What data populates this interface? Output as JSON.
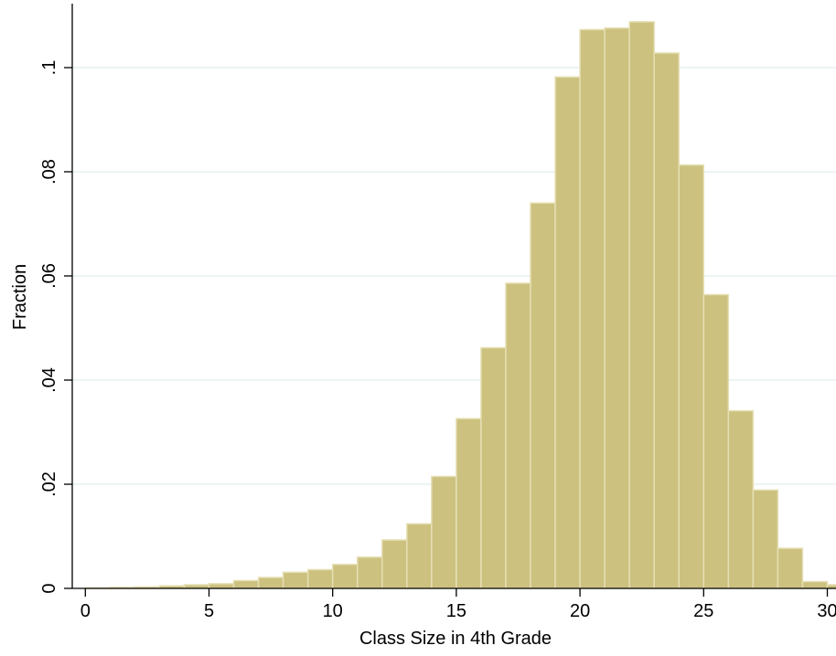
{
  "colors": {
    "bar_fill": "#ccc17f",
    "bar_stroke": "#e6dfb4",
    "grid": "#e3ecee",
    "axis": "#000000"
  },
  "chart_data": {
    "type": "bar",
    "subtype": "histogram",
    "xlabel": "Class Size in 4th Grade",
    "ylabel": "Fraction",
    "xlim": [
      -0.5,
      31
    ],
    "ylim": [
      0,
      0.1125
    ],
    "bin_width": 1,
    "bin_centers": [
      0.5,
      1.5,
      2.5,
      3.5,
      4.5,
      5.5,
      6.5,
      7.5,
      8.5,
      9.5,
      10.5,
      11.5,
      12.5,
      13.5,
      14.5,
      15.5,
      16.5,
      17.5,
      18.5,
      19.5,
      20.5,
      21.5,
      22.5,
      23.5,
      24.5,
      25.5,
      26.5,
      27.5,
      28.5,
      29.5,
      30.5
    ],
    "values": [
      0.0001,
      0.0002,
      0.0003,
      0.0005,
      0.0007,
      0.0009,
      0.0015,
      0.0021,
      0.0031,
      0.0036,
      0.0046,
      0.006,
      0.0093,
      0.0124,
      0.0215,
      0.0326,
      0.0462,
      0.0586,
      0.074,
      0.0982,
      0.1073,
      0.1076,
      0.1088,
      0.1028,
      0.0813,
      0.0564,
      0.0341,
      0.0189,
      0.0077,
      0.0013,
      0.0007
    ],
    "x_ticks": [
      0,
      5,
      10,
      15,
      20,
      25,
      30
    ],
    "x_tick_labels": [
      "0",
      "5",
      "10",
      "15",
      "20",
      "25",
      "30"
    ],
    "y_ticks": [
      0,
      0.02,
      0.04,
      0.06,
      0.08,
      0.1
    ],
    "y_tick_labels": [
      "0",
      ".02",
      ".04",
      ".06",
      ".08",
      ".1"
    ],
    "grid": true,
    "legend": false
  }
}
